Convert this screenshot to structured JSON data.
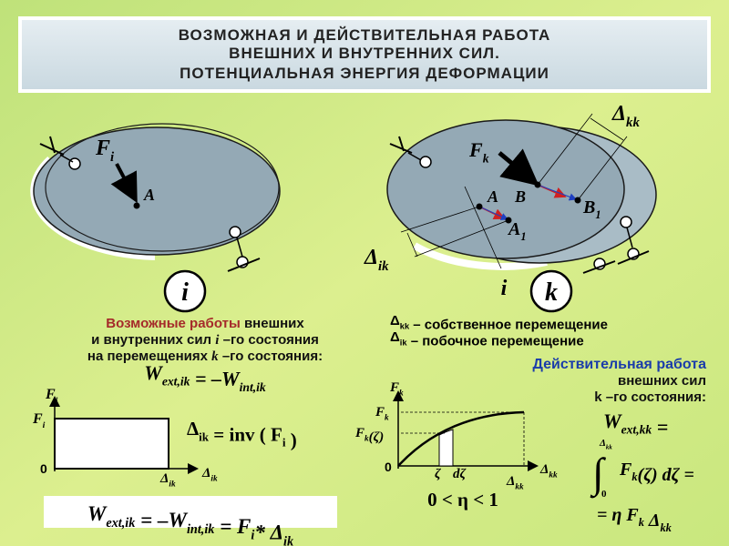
{
  "header": {
    "lines": [
      "ВОЗМОЖНАЯ И ДЕЙСТВИТЕЛЬНАЯ РАБОТА",
      "ВНЕШНИХ И ВНУТРЕННИХ СИЛ.",
      "ПОТЕНЦИАЛЬНАЯ ЭНЕРГИЯ ДЕФОРМАЦИИ"
    ]
  },
  "left_diagram": {
    "force": [
      [
        "F",
        "i"
      ]
    ],
    "point": "A",
    "state": "i"
  },
  "right_diagram": {
    "force": [
      [
        "F",
        "k"
      ]
    ],
    "point_a": "A",
    "point_b": "B",
    "point_b1": [
      [
        "B",
        "1"
      ]
    ],
    "point_a1": [
      [
        "A",
        "1"
      ]
    ],
    "delta_kk": [
      [
        "Δ",
        "kk"
      ]
    ],
    "delta_ik": [
      [
        "Δ",
        "ik"
      ]
    ],
    "state_i": "i",
    "state_k": "k"
  },
  "left_text": {
    "lines": [
      [
        "Возможные работы",
        " внешних"
      ],
      [
        "и внутренних сил ",
        "i",
        " –го состояния"
      ],
      [
        "на перемещениях ",
        "k",
        " –го состояния:"
      ]
    ],
    "formula": [
      [
        "W",
        "ext,ik"
      ],
      [
        " = –W",
        "int,ik"
      ]
    ]
  },
  "left_graph": {
    "y_axis": [
      [
        "F",
        "i"
      ]
    ],
    "level": [
      [
        "F",
        "i"
      ]
    ],
    "origin": "0",
    "x_mark": [
      [
        "Δ",
        "ik"
      ]
    ],
    "x_axis": [
      [
        "Δ",
        "ik"
      ]
    ],
    "relation": [
      [
        "Δ",
        "ik"
      ],
      [
        " = inv ( F",
        "i"
      ],
      [
        " )"
      ]
    ]
  },
  "bottom_formula": [
    [
      "W",
      "ext,ik"
    ],
    [
      " = –W",
      "int,ik"
    ],
    [
      " = F",
      "i"
    ],
    [
      "* Δ",
      "ik"
    ]
  ],
  "right_text": {
    "legend": [
      [
        [
          "Δ",
          "kk"
        ],
        [
          " – собственное перемещение"
        ]
      ],
      [
        [
          "Δ",
          "ik"
        ],
        [
          " – побочное перемещение"
        ]
      ]
    ],
    "title": "Действительная работа",
    "lines": [
      "внешних сил",
      "k –го состояния:"
    ]
  },
  "right_graph": {
    "y_axis": [
      [
        "F",
        "k"
      ]
    ],
    "level": [
      [
        "F",
        "k"
      ]
    ],
    "level_zeta": [
      [
        "F",
        "k"
      ],
      [
        "(ζ)"
      ]
    ],
    "origin": "0",
    "zeta": "ζ",
    "dzeta": "dζ",
    "x_mark": [
      [
        "Δ",
        "kk"
      ]
    ],
    "x_axis": [
      [
        "Δ",
        "kk"
      ]
    ],
    "eta": "0 < η < 1"
  },
  "work_formula": {
    "lhs": [
      [
        "W",
        "ext,kk"
      ],
      [
        " ="
      ]
    ],
    "integral": "∫",
    "upper": [
      [
        "Δ",
        "kk"
      ]
    ],
    "lower": "0",
    "integrand": [
      [
        "F",
        "k"
      ],
      [
        "(ζ) dζ ="
      ]
    ],
    "result": [
      [
        "= η F",
        "k"
      ],
      [
        " Δ",
        "kk"
      ]
    ]
  }
}
